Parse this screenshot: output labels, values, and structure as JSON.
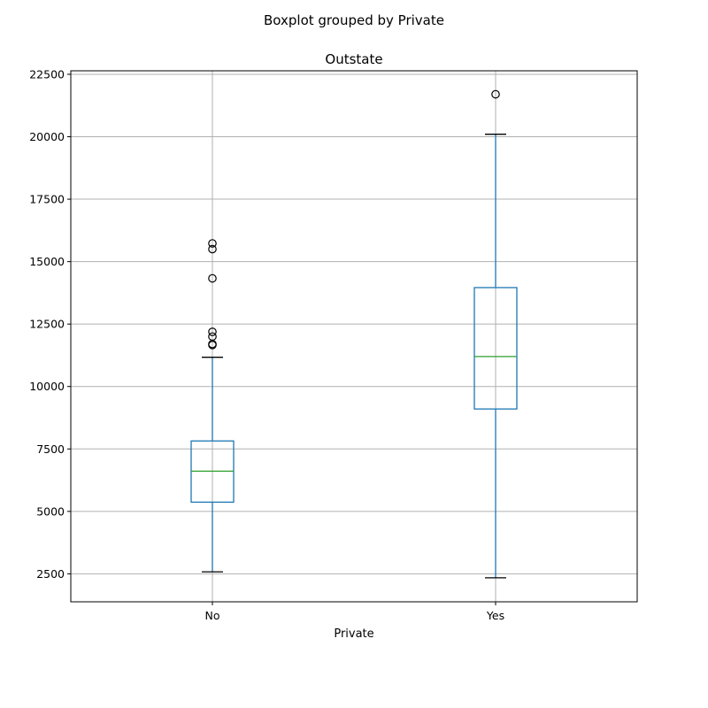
{
  "chart_data": {
    "type": "boxplot",
    "suptitle": "Boxplot grouped by Private",
    "title": "Outstate",
    "xlabel": "Private",
    "ylabel": "",
    "categories": [
      "No",
      "Yes"
    ],
    "ylim": [
      1380,
      22640
    ],
    "yticks": [
      2500,
      5000,
      7500,
      10000,
      12500,
      15000,
      17500,
      20000,
      22500
    ],
    "grid": true,
    "boxes": [
      {
        "category": "No",
        "whisker_low": 2580,
        "q1": 5370,
        "median": 6610,
        "q3": 7820,
        "whisker_high": 11170,
        "outliers": [
          11660,
          11700,
          12000,
          12190,
          14330,
          15500,
          15730
        ]
      },
      {
        "category": "Yes",
        "whisker_low": 2340,
        "q1": 9100,
        "median": 11200,
        "q3": 13960,
        "whisker_high": 20100,
        "outliers": [
          21700
        ]
      }
    ],
    "colors": {
      "box": "#1f77b4",
      "median": "#2ca02c",
      "whisker": "#1f77b4",
      "caps": "#000000",
      "outlier": "#000000",
      "grid": "#b0b0b0"
    }
  }
}
